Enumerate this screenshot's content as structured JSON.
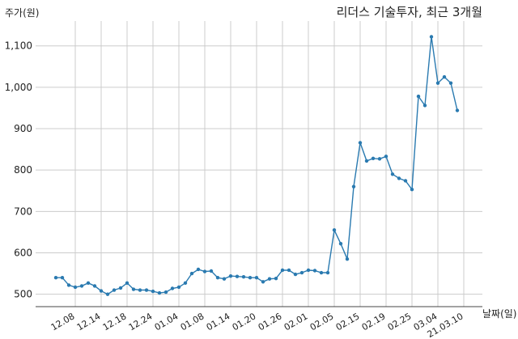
{
  "chart_data": {
    "type": "line",
    "title": "리더스 기술투자, 최근 3개월",
    "ylabel": "주가(원)",
    "xlabel": "날짜(일)",
    "ylim": [
      470,
      1160
    ],
    "yticks": [
      500,
      600,
      700,
      800,
      900,
      1000,
      1100
    ],
    "ytick_labels": [
      "500",
      "600",
      "700",
      "800",
      "900",
      "1,000",
      "1,100"
    ],
    "xtick_labels": [
      "12.08",
      "12.14",
      "12.18",
      "12.24",
      "01.04",
      "01.08",
      "01.14",
      "01.20",
      "01.26",
      "02.01",
      "02.05",
      "02.15",
      "02.19",
      "02.25",
      "03.04",
      "21.03.10"
    ],
    "xtick_positions": [
      3,
      7,
      11,
      15,
      19,
      23,
      27,
      31,
      35,
      39,
      43,
      47,
      51,
      55,
      59,
      63
    ],
    "grid": true,
    "line_color": "#2a7ab0",
    "series": [
      {
        "values": [
          540,
          540,
          522,
          517,
          520,
          527,
          520,
          508,
          500,
          510,
          515,
          527,
          512,
          510,
          510,
          507,
          503,
          505,
          514,
          517,
          527,
          550,
          560,
          555,
          556,
          540,
          537,
          544,
          543,
          542,
          540,
          540,
          530,
          537,
          538,
          558,
          558,
          548,
          552,
          558,
          557,
          552,
          552,
          655,
          622,
          585,
          760,
          866,
          822,
          828,
          827,
          833,
          790,
          780,
          774,
          753,
          978,
          956,
          1122,
          1010,
          1025,
          1010,
          944
        ]
      }
    ]
  }
}
